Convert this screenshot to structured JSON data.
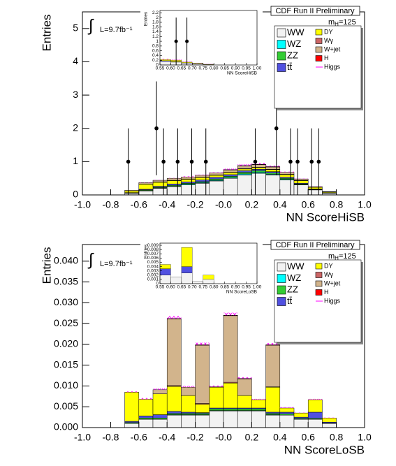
{
  "chart_data": [
    {
      "type": "histogram",
      "title": "CDF Run II Preliminary",
      "annotation_symbol": "∫",
      "annotation": "L=9.7fb⁻¹",
      "mass_label": {
        "symbol": "m",
        "subscript": "H",
        "value": "=125"
      },
      "xlabel": "NN ScoreHiSB",
      "ylabel": "Entries",
      "xlim": [
        -1,
        1
      ],
      "xticks": [
        {
          "value": -1,
          "label": "-1.0"
        },
        -0.8,
        -0.6,
        -0.4,
        -0.2,
        {
          "value": 0,
          "label": "-0.0"
        },
        0.2,
        0.4,
        0.6,
        0.8,
        {
          "value": 1,
          "label": "1.0"
        }
      ],
      "ylim": [
        0,
        5.5
      ],
      "yticks": [
        0,
        1,
        2,
        3,
        4,
        5
      ],
      "bins": [
        -0.7,
        -0.6,
        -0.5,
        -0.4,
        -0.3,
        -0.2,
        -0.1,
        0,
        0.1,
        0.2,
        0.3,
        0.4,
        0.5,
        0.6,
        0.7,
        0.8
      ],
      "series": [
        {
          "name": "WW",
          "color": "#f2f2f2",
          "values": [
            0.05,
            0.12,
            0.2,
            0.25,
            0.3,
            0.35,
            0.42,
            0.5,
            0.6,
            0.65,
            0.6,
            0.45,
            0.3,
            0.15,
            0.05
          ]
        },
        {
          "name": "WZ",
          "color": "#00ffff",
          "values": [
            0,
            0.01,
            0.01,
            0.01,
            0.02,
            0.02,
            0.02,
            0.02,
            0.03,
            0.03,
            0.02,
            0.02,
            0.01,
            0.01,
            0
          ]
        },
        {
          "name": "ZZ",
          "color": "#33cc33",
          "values": [
            0.01,
            0.02,
            0.02,
            0.03,
            0.03,
            0.03,
            0.04,
            0.04,
            0.05,
            0.05,
            0.04,
            0.03,
            0.02,
            0.01,
            0.01
          ]
        },
        {
          "name": "tt̄",
          "color": "#5050e0",
          "values": [
            0.01,
            0.02,
            0.03,
            0.04,
            0.04,
            0.05,
            0.05,
            0.05,
            0.05,
            0.04,
            0.04,
            0.03,
            0.02,
            0.01,
            0.01
          ]
        },
        {
          "name": "DY",
          "color": "#ffff00",
          "values": [
            0.05,
            0.15,
            0.12,
            0.1,
            0.08,
            0.07,
            0.06,
            0.06,
            0.05,
            0.05,
            0.06,
            0.08,
            0.08,
            0.05,
            0.02
          ]
        },
        {
          "name": "Wγ",
          "color": "#cc6666",
          "values": [
            0,
            0.01,
            0.01,
            0.01,
            0.01,
            0.01,
            0.01,
            0.01,
            0.01,
            0.01,
            0.01,
            0.01,
            0.01,
            0,
            0
          ]
        },
        {
          "name": "W+jet",
          "color": "#d2b48c",
          "values": [
            0.02,
            0.04,
            0.05,
            0.06,
            0.06,
            0.06,
            0.06,
            0.07,
            0.08,
            0.08,
            0.07,
            0.06,
            0.04,
            0.02,
            0.01
          ]
        },
        {
          "name": "H",
          "color": "#ff0000",
          "values": [
            0,
            0,
            0,
            0,
            0,
            0,
            0,
            0.01,
            0.01,
            0.01,
            0.01,
            0,
            0,
            0,
            0
          ]
        },
        {
          "name": "Higgs",
          "color": "#ff00ff",
          "pattern": "crosshatch",
          "values": [
            0,
            0.01,
            0.01,
            0.01,
            0.02,
            0.02,
            0.02,
            0.03,
            0.04,
            0.04,
            0.03,
            0.02,
            0.01,
            0.01,
            0
          ]
        }
      ],
      "data_points": {
        "x": [
          -0.675,
          -0.475,
          -0.425,
          -0.325,
          -0.225,
          -0.125,
          0.225,
          0.375,
          0.475,
          0.525,
          0.625,
          0.675
        ],
        "values": [
          1,
          2,
          1,
          1,
          1,
          1,
          1,
          2,
          1,
          1,
          1,
          1
        ],
        "errors": [
          1,
          1.41,
          1,
          1,
          1,
          1,
          1,
          1.41,
          1,
          1,
          1,
          1
        ]
      },
      "inset": {
        "xlabel": "NN ScoreHiSB",
        "ylabel": "Entries",
        "xlim": [
          0.55,
          1.0
        ],
        "xticks": [
          0.55,
          {
            "value": 0.6,
            "label": "0.60"
          },
          0.65,
          {
            "value": 0.7,
            "label": "0.70"
          },
          0.75,
          {
            "value": 0.8,
            "label": "0.80"
          },
          0.85,
          {
            "value": 0.9,
            "label": "0.90"
          },
          0.95,
          {
            "value": 1,
            "label": "1.00"
          }
        ],
        "ylim": [
          0,
          2.3
        ],
        "yticks": [
          0,
          0.2,
          0.4,
          0.6,
          0.8,
          1,
          1.2,
          1.4,
          1.6,
          1.8,
          2,
          2.2
        ],
        "bins": [
          0.55,
          0.6,
          0.65,
          0.7,
          0.75,
          0.8
        ],
        "series": [
          {
            "color": "#f2f2f2",
            "values": [
              0.15,
              0.12,
              0.08,
              0.05,
              0.02
            ]
          },
          {
            "color": "#5050e0",
            "values": [
              0.03,
              0.02,
              0.01,
              0.01,
              0
            ]
          },
          {
            "color": "#ffff00",
            "values": [
              0.05,
              0.06,
              0.03,
              0.02,
              0.01
            ]
          },
          {
            "color": "#ff00ff",
            "pattern": "crosshatch",
            "values": [
              0.03,
              0.03,
              0.02,
              0.01,
              0.01
            ]
          }
        ],
        "data_points": {
          "x": [
            0.625,
            0.675
          ],
          "values": [
            1,
            1
          ],
          "errors": [
            1,
            1
          ]
        }
      }
    },
    {
      "type": "histogram",
      "title": "CDF Run II Preliminary",
      "annotation_symbol": "∫",
      "annotation": "L=9.7fb⁻¹",
      "mass_label": {
        "symbol": "m",
        "subscript": "H",
        "value": "=125"
      },
      "xlabel": "NN ScoreLoSB",
      "ylabel": "Entries",
      "xlim": [
        -1,
        1
      ],
      "xticks": [
        {
          "value": -1,
          "label": "-1.0"
        },
        -0.8,
        -0.6,
        -0.4,
        -0.2,
        {
          "value": 0,
          "label": "-0.0"
        },
        0.2,
        0.4,
        0.6,
        0.8,
        {
          "value": 1,
          "label": "1.0"
        }
      ],
      "ylim": [
        0,
        0.044
      ],
      "yticks": [
        {
          "value": 0,
          "label": "0.000"
        },
        0.005,
        {
          "value": 0.01,
          "label": "0.010"
        },
        0.015,
        {
          "value": 0.02,
          "label": "0.020"
        },
        0.025,
        {
          "value": 0.03,
          "label": "0.030"
        },
        0.035,
        {
          "value": 0.04,
          "label": "0.040"
        }
      ],
      "bins": [
        -0.7,
        -0.6,
        -0.5,
        -0.4,
        -0.3,
        -0.2,
        -0.1,
        0,
        0.1,
        0.2,
        0.3,
        0.4,
        0.5,
        0.6,
        0.7,
        0.8
      ],
      "series": [
        {
          "name": "WW",
          "color": "#f2f2f2",
          "values": [
            0.001,
            0.002,
            0.002,
            0.003,
            0.003,
            0.003,
            0.004,
            0.004,
            0.004,
            0.004,
            0.003,
            0.003,
            0.002,
            0.002,
            0.001
          ]
        },
        {
          "name": "WZ",
          "color": "#00ffff",
          "values": [
            0,
            0,
            0,
            0.0001,
            0.0001,
            0.0001,
            0.0001,
            0.0001,
            0.0001,
            0.0001,
            0.0001,
            0,
            0,
            0,
            0
          ]
        },
        {
          "name": "ZZ",
          "color": "#33cc33",
          "values": [
            0.0002,
            0.0003,
            0.0003,
            0.0003,
            0.0003,
            0.0003,
            0.0004,
            0.0004,
            0.0004,
            0.0004,
            0.0003,
            0.0003,
            0.0002,
            0.0002,
            0.0001
          ]
        },
        {
          "name": "tt̄",
          "color": "#5050e0",
          "values": [
            0.0003,
            0.0005,
            0.0008,
            0.0005,
            0.0003,
            0.0002,
            0.0002,
            0.0002,
            0.0002,
            0.0002,
            0.0003,
            0.0004,
            0.0003,
            0.0015,
            0.0002
          ]
        },
        {
          "name": "DY",
          "color": "#ffff00",
          "values": [
            0.007,
            0.004,
            0.005,
            0.006,
            0.004,
            0.002,
            0.005,
            0.006,
            0.003,
            0.002,
            0.006,
            0.001,
            0.001,
            0.003,
            0.001
          ]
        },
        {
          "name": "Wγ",
          "color": "#cc6666",
          "values": [
            0,
            0,
            0,
            0.0002,
            0,
            0.0002,
            0,
            0.0002,
            0,
            0,
            0.0001,
            0,
            0,
            0,
            0
          ]
        },
        {
          "name": "W+jet",
          "color": "#d2b48c",
          "values": [
            0,
            0,
            0.001,
            0.016,
            0.002,
            0.014,
            0,
            0.016,
            0.004,
            0,
            0.01,
            0,
            0,
            0,
            0
          ]
        },
        {
          "name": "H",
          "color": "#ff0000",
          "values": [
            0,
            0,
            0,
            0.0001,
            0,
            0.0001,
            0.0001,
            0.0001,
            0.0001,
            0,
            0.0001,
            0,
            0,
            0,
            0
          ]
        },
        {
          "name": "Higgs",
          "color": "#ff00ff",
          "pattern": "crosshatch",
          "values": [
            0.0002,
            0.0003,
            0.0003,
            0.0006,
            0.0003,
            0.0005,
            0.0003,
            0.0006,
            0.0003,
            0.0002,
            0.0004,
            0.0002,
            0.0001,
            0.0002,
            0.0001
          ]
        }
      ],
      "inset": {
        "xlabel": "NN ScoreLoSB",
        "ylabel": "Entries",
        "xlim": [
          0.55,
          1.0
        ],
        "xticks": [
          0.55,
          {
            "value": 0.6,
            "label": "0.60"
          },
          0.65,
          {
            "value": 0.7,
            "label": "0.70"
          },
          0.75,
          {
            "value": 0.8,
            "label": "0.80"
          },
          0.85,
          {
            "value": 0.9,
            "label": "0.90"
          },
          0.95,
          {
            "value": 1,
            "label": "1.00"
          }
        ],
        "ylim": [
          0,
          0.0095
        ],
        "yticks": [
          0,
          0.001,
          0.002,
          0.003,
          0.004,
          0.005,
          0.006,
          0.007,
          0.008,
          0.009
        ],
        "bins": [
          0.55,
          0.6,
          0.65,
          0.7,
          0.75,
          0.8
        ],
        "series": [
          {
            "color": "#f2f2f2",
            "values": [
              0.002,
              0.0015,
              0.0025,
              0.0005,
              0.001
            ]
          },
          {
            "color": "#5050e0",
            "values": [
              0.0015,
              0,
              0.0015,
              0,
              0
            ]
          },
          {
            "color": "#ffff00",
            "values": [
              0.001,
              0,
              0.0045,
              0,
              0.001
            ]
          }
        ]
      }
    }
  ]
}
